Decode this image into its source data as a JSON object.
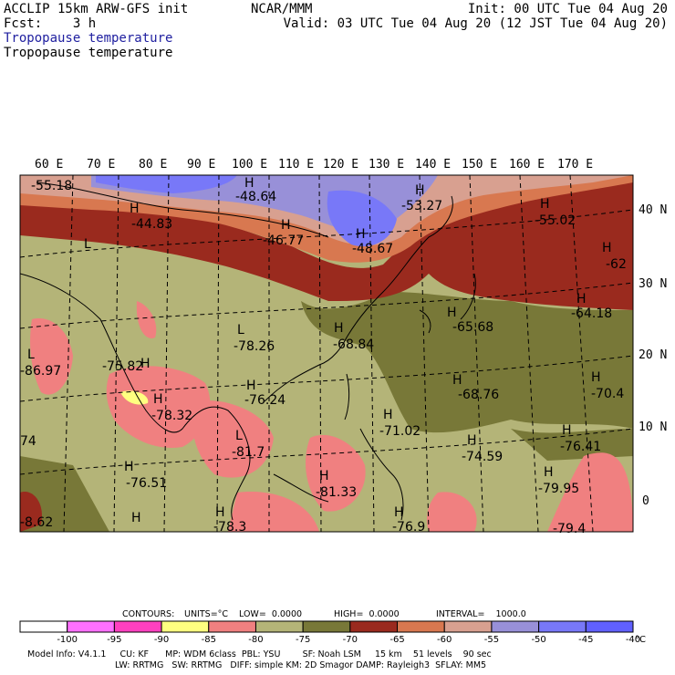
{
  "header": {
    "left1": "ACCLIP 15km ARW-GFS init",
    "left2": "Fcst:    3 h",
    "center": "NCAR/MMM",
    "right1": "Init: 00 UTC Tue 04 Aug 20",
    "right2": "Valid: 03 UTC Tue 04 Aug 20 (12 JST Tue 04 Aug 20)",
    "field1": "Tropopause temperature",
    "field2": "Tropopause temperature"
  },
  "lon_labels": [
    "60 E",
    "70 E",
    "80 E",
    "90 E",
    "100 E",
    "110 E",
    "120 E",
    "130 E",
    "140 E",
    "150 E",
    "160 E",
    "170 E"
  ],
  "lat_labels": [
    "40 N",
    "30 N",
    "20 N",
    "10 N",
    "0"
  ],
  "map_labels": [
    {
      "t": "-55.18"
    },
    {
      "t": "-48.64"
    },
    {
      "t": "-53.27"
    },
    {
      "t": "-44.83"
    },
    {
      "t": "-46.77"
    },
    {
      "t": "-48.67"
    },
    {
      "t": "-55.02"
    },
    {
      "t": "-62"
    },
    {
      "t": "-64.18"
    },
    {
      "t": "-78.26"
    },
    {
      "t": "-68.84"
    },
    {
      "t": "-65.68"
    },
    {
      "t": "-86.97"
    },
    {
      "t": "-75.82"
    },
    {
      "t": "-76.24"
    },
    {
      "t": "-78.32"
    },
    {
      "t": "-68.76"
    },
    {
      "t": "-70.4"
    },
    {
      "t": "-71.02"
    },
    {
      "t": "-81.7"
    },
    {
      "t": "-74.59"
    },
    {
      "t": "-76.41"
    },
    {
      "t": "-76.51"
    },
    {
      "t": "-81.33"
    },
    {
      "t": "-79.95"
    },
    {
      "t": "-8.62"
    },
    {
      "t": "-78.3"
    },
    {
      "t": "-76.9"
    },
    {
      "t": "-79.4"
    },
    {
      "t": "74"
    }
  ],
  "hl_markers": [
    "H",
    "H",
    "H",
    "H",
    "H",
    "H",
    "L",
    "H",
    "H",
    "H",
    "L",
    "H",
    "H",
    "L",
    "H",
    "H",
    "H",
    "H",
    "H",
    "L",
    "H",
    "H",
    "H",
    "H",
    "H",
    "H",
    "H",
    "H"
  ],
  "contour_info": {
    "contours": "CONTOURS:",
    "units": "UNITS=°C",
    "low": "LOW=  0.0000",
    "high": "HIGH=  0.0000",
    "interval": "INTERVAL=    1000.0"
  },
  "colorbar": {
    "colors": [
      "#ffffff",
      "#ff70ff",
      "#ff40c0",
      "#ffff80",
      "#f08080",
      "#b4b478",
      "#787838",
      "#9a2a1e",
      "#d87850",
      "#d8a090",
      "#9890d8",
      "#7878f8",
      "#6060ff"
    ],
    "labels": [
      "-100",
      "-95",
      "-90",
      "-85",
      "-80",
      "-75",
      "-70",
      "-65",
      "-60",
      "-55",
      "-50",
      "-45",
      "-40"
    ],
    "unit": "°C"
  },
  "model_info": {
    "line1": "Model Info: V4.1.1     CU: KF      MP: WDM 6class  PBL: YSU        SF: Noah LSM     15 km    51 levels    90 sec",
    "line2": "LW: RRTMG   SW: RRTMG   DIFF: simple KM: 2D Smagor DAMP: Rayleigh3  SFLAY: MM5"
  }
}
